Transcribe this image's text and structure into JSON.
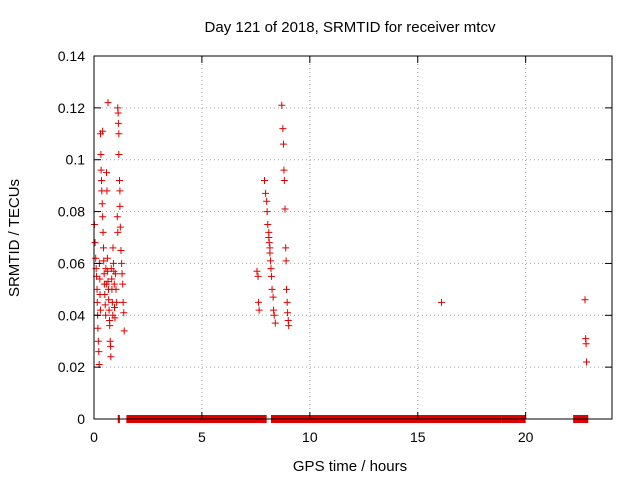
{
  "chart_data": {
    "type": "scatter",
    "title": "Day 121 of 2018, SRMTID for receiver mtcv",
    "xlabel": "GPS time / hours",
    "ylabel": "SRMTID / TECUs",
    "xlim": [
      0,
      24
    ],
    "ylim": [
      0,
      0.14
    ],
    "x_ticks": [
      0,
      5,
      10,
      15,
      20
    ],
    "y_ticks": [
      0,
      0.02,
      0.04,
      0.06,
      0.08,
      0.1,
      0.12,
      0.14
    ],
    "x_tick_labels": [
      "0",
      "5",
      "10",
      "15",
      "20"
    ],
    "y_tick_labels": [
      "0",
      "0.02",
      "0.04",
      "0.06",
      "0.08",
      "0.1",
      "0.12",
      "0.14"
    ],
    "grid": true,
    "marker": "+",
    "color": "#e00000",
    "zero_segments": [
      [
        1.1,
        1.2
      ],
      [
        1.5,
        8.0
      ],
      [
        8.2,
        18.9
      ],
      [
        18.9,
        20.0
      ],
      [
        22.2,
        22.9
      ]
    ],
    "points": [
      [
        0.02,
        0.075
      ],
      [
        0.05,
        0.068
      ],
      [
        0.08,
        0.062
      ],
      [
        0.1,
        0.058
      ],
      [
        0.12,
        0.055
      ],
      [
        0.14,
        0.05
      ],
      [
        0.15,
        0.045
      ],
      [
        0.17,
        0.04
      ],
      [
        0.18,
        0.035
      ],
      [
        0.2,
        0.03
      ],
      [
        0.22,
        0.026
      ],
      [
        0.24,
        0.021
      ],
      [
        0.25,
        0.06
      ],
      [
        0.27,
        0.054
      ],
      [
        0.28,
        0.048
      ],
      [
        0.3,
        0.042
      ],
      [
        0.3,
        0.11
      ],
      [
        0.32,
        0.102
      ],
      [
        0.33,
        0.096
      ],
      [
        0.35,
        0.092
      ],
      [
        0.36,
        0.088
      ],
      [
        0.38,
        0.083
      ],
      [
        0.4,
        0.078
      ],
      [
        0.4,
        0.111
      ],
      [
        0.42,
        0.072
      ],
      [
        0.44,
        0.066
      ],
      [
        0.45,
        0.061
      ],
      [
        0.47,
        0.056
      ],
      [
        0.48,
        0.052
      ],
      [
        0.5,
        0.048
      ],
      [
        0.52,
        0.044
      ],
      [
        0.54,
        0.04
      ],
      [
        0.55,
        0.058
      ],
      [
        0.57,
        0.052
      ],
      [
        0.58,
        0.095
      ],
      [
        0.6,
        0.088
      ],
      [
        0.62,
        0.062
      ],
      [
        0.63,
        0.057
      ],
      [
        0.65,
        0.053
      ],
      [
        0.65,
        0.122
      ],
      [
        0.67,
        0.05
      ],
      [
        0.68,
        0.046
      ],
      [
        0.7,
        0.042
      ],
      [
        0.72,
        0.038
      ],
      [
        0.73,
        0.036
      ],
      [
        0.75,
        0.03
      ],
      [
        0.77,
        0.028
      ],
      [
        0.78,
        0.024
      ],
      [
        0.8,
        0.058
      ],
      [
        0.82,
        0.054
      ],
      [
        0.83,
        0.05
      ],
      [
        0.85,
        0.045
      ],
      [
        0.87,
        0.04
      ],
      [
        0.88,
        0.066
      ],
      [
        0.9,
        0.06
      ],
      [
        0.92,
        0.057
      ],
      [
        0.94,
        0.052
      ],
      [
        0.95,
        0.043
      ],
      [
        0.97,
        0.039
      ],
      [
        1.0,
        0.056
      ],
      [
        1.02,
        0.05
      ],
      [
        1.05,
        0.045
      ],
      [
        1.08,
        0.078
      ],
      [
        1.1,
        0.072
      ],
      [
        1.1,
        0.12
      ],
      [
        1.12,
        0.118
      ],
      [
        1.13,
        0.114
      ],
      [
        1.15,
        0.11
      ],
      [
        1.15,
        0.102
      ],
      [
        1.18,
        0.092
      ],
      [
        1.2,
        0.088
      ],
      [
        1.2,
        0.082
      ],
      [
        1.22,
        0.074
      ],
      [
        1.25,
        0.065
      ],
      [
        1.28,
        0.06
      ],
      [
        1.3,
        0.056
      ],
      [
        1.33,
        0.052
      ],
      [
        1.35,
        0.045
      ],
      [
        1.38,
        0.041
      ],
      [
        1.4,
        0.034
      ],
      [
        7.55,
        0.057
      ],
      [
        7.6,
        0.055
      ],
      [
        7.62,
        0.045
      ],
      [
        7.65,
        0.042
      ],
      [
        7.9,
        0.092
      ],
      [
        7.95,
        0.087
      ],
      [
        8.0,
        0.084
      ],
      [
        8.02,
        0.08
      ],
      [
        8.05,
        0.075
      ],
      [
        8.1,
        0.07
      ],
      [
        8.12,
        0.068
      ],
      [
        8.15,
        0.064
      ],
      [
        8.18,
        0.061
      ],
      [
        8.2,
        0.058
      ],
      [
        8.22,
        0.055
      ],
      [
        8.25,
        0.05
      ],
      [
        8.3,
        0.047
      ],
      [
        8.32,
        0.042
      ],
      [
        8.35,
        0.04
      ],
      [
        8.4,
        0.037
      ],
      [
        8.1,
        0.072
      ],
      [
        8.15,
        0.066
      ],
      [
        8.7,
        0.121
      ],
      [
        8.75,
        0.112
      ],
      [
        8.78,
        0.106
      ],
      [
        8.8,
        0.096
      ],
      [
        8.82,
        0.092
      ],
      [
        8.85,
        0.081
      ],
      [
        8.88,
        0.066
      ],
      [
        8.9,
        0.061
      ],
      [
        8.92,
        0.05
      ],
      [
        8.95,
        0.045
      ],
      [
        8.97,
        0.041
      ],
      [
        9.0,
        0.038
      ],
      [
        9.02,
        0.036
      ],
      [
        16.1,
        0.045
      ],
      [
        22.75,
        0.046
      ],
      [
        22.78,
        0.031
      ],
      [
        22.8,
        0.029
      ],
      [
        22.82,
        0.022
      ]
    ]
  }
}
